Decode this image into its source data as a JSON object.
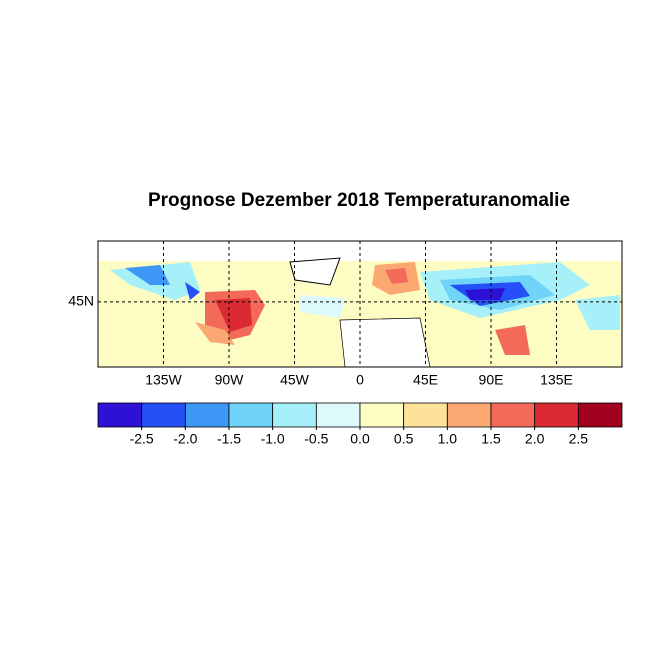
{
  "title": "Prognose Dezember 2018 Temperaturanomalie",
  "map": {
    "xlim": [
      -180,
      180
    ],
    "ylim": [
      0,
      87
    ],
    "xticks": [
      {
        "value": -135,
        "label": "135W"
      },
      {
        "value": -90,
        "label": "90W"
      },
      {
        "value": -45,
        "label": "45W"
      },
      0,
      {
        "value": 45,
        "label": "45E"
      },
      {
        "value": 90,
        "label": "90E"
      },
      {
        "value": 135,
        "label": "135E"
      }
    ],
    "yticks": [
      {
        "value": 45,
        "label": "45N"
      }
    ]
  },
  "colorbar": {
    "clim": [
      -3,
      3
    ],
    "colors": [
      "#2d12d6",
      "#2550f5",
      "#3d97f5",
      "#6fd4f8",
      "#a6f0fa",
      "#dcfafc",
      "#fdfcc2",
      "#fde29a",
      "#fca873",
      "#f46a58",
      "#dc2a33",
      "#a0011f"
    ],
    "ticks": [
      -2.5,
      {
        "value": -2,
        "label": "-2.0"
      },
      -1.5,
      {
        "value": -1,
        "label": "-1.0"
      },
      -0.5,
      {
        "value": 0,
        "label": "0.0"
      },
      0.5,
      {
        "value": 1,
        "label": "1.0"
      },
      1.5,
      {
        "value": 2,
        "label": "2.0"
      },
      2.5
    ]
  }
}
